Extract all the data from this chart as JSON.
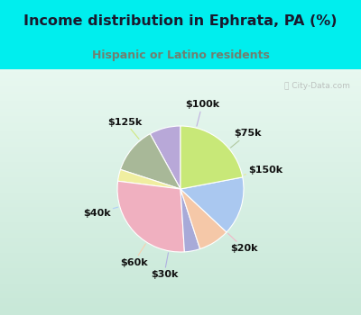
{
  "title": "Income distribution in Ephrata, PA (%)",
  "subtitle": "Hispanic or Latino residents",
  "title_color": "#1a1a2e",
  "subtitle_color": "#708070",
  "background_outer": "#00eeee",
  "background_inner_top": "#e8f5f0",
  "background_inner_bottom": "#d0ede0",
  "labels": [
    "$100k",
    "$75k",
    "$150k",
    "$20k",
    "$30k",
    "$60k",
    "$40k",
    "$125k"
  ],
  "sizes": [
    8,
    12,
    3,
    28,
    4,
    8,
    15,
    22
  ],
  "colors": [
    "#b8a8d8",
    "#a8b898",
    "#f0eea0",
    "#f0b0c0",
    "#a8aad8",
    "#f5c8a8",
    "#aac8f0",
    "#c8e878"
  ],
  "startangle": 90,
  "label_fontsize": 8,
  "watermark": "City-Data.com"
}
